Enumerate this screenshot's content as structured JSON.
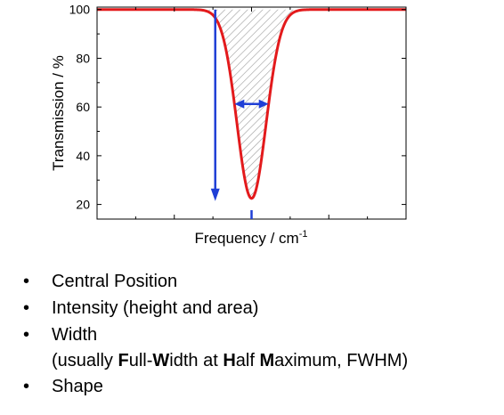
{
  "chart_data": {
    "type": "line",
    "xlabel_text": "Frequency / cm",
    "xlabel_sup": "-1",
    "ylabel": "Transmission / %",
    "ylim": [
      14,
      101
    ],
    "yticks": [
      20,
      40,
      60,
      80,
      100
    ],
    "x_tick_labels_shown": false,
    "series": [
      {
        "shape": "inverted-gaussian-peak",
        "color": "#e31a1c",
        "baseline": 100,
        "minimum": 22.5
      }
    ],
    "annotations": [
      {
        "type": "hatched-area",
        "meaning": "integrated area of the band"
      },
      {
        "type": "arrow",
        "color": "#1f3fd6",
        "meaning": "intensity, from baseline down to band minimum"
      },
      {
        "type": "double-arrow",
        "color": "#1f3fd6",
        "meaning": "width at half maximum"
      },
      {
        "type": "tick-mark",
        "color": "#1f3fd6",
        "meaning": "central position"
      }
    ]
  },
  "bullets": [
    {
      "dot": "•",
      "parts": [
        {
          "t": "Central Position",
          "b": false
        }
      ]
    },
    {
      "dot": "•",
      "parts": [
        {
          "t": "Intensity (height and area)",
          "b": false
        }
      ]
    },
    {
      "dot": "•",
      "parts": [
        {
          "t": "Width",
          "b": false
        }
      ],
      "sub": [
        {
          "t": "(usually ",
          "b": false
        },
        {
          "t": "F",
          "b": true
        },
        {
          "t": "ull-",
          "b": false
        },
        {
          "t": "W",
          "b": true
        },
        {
          "t": "idth at ",
          "b": false
        },
        {
          "t": "H",
          "b": true
        },
        {
          "t": "alf ",
          "b": false
        },
        {
          "t": "M",
          "b": true
        },
        {
          "t": "aximum, FWHM)",
          "b": false
        }
      ]
    },
    {
      "dot": "•",
      "parts": [
        {
          "t": "Shape",
          "b": false
        }
      ]
    }
  ]
}
